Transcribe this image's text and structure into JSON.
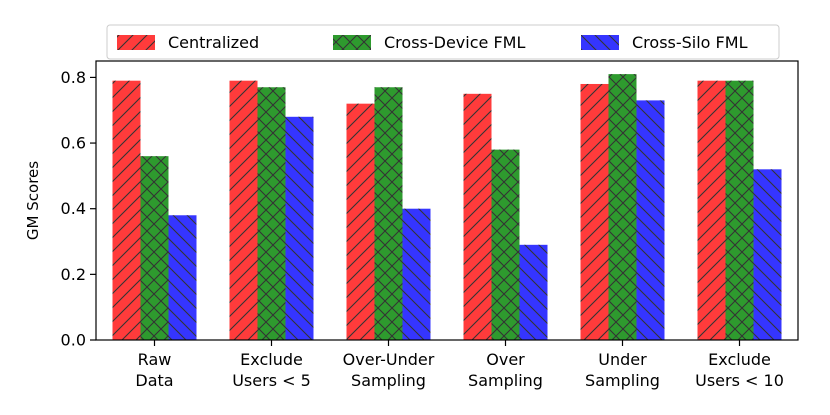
{
  "chart_data": {
    "type": "bar",
    "title": "",
    "xlabel": "",
    "ylabel": "GM Scores",
    "ylim": [
      0,
      0.85
    ],
    "yticks": [
      0.0,
      0.2,
      0.4,
      0.6,
      0.8
    ],
    "ytick_labels": [
      "0.0",
      "0.2",
      "0.4",
      "0.6",
      "0.8"
    ],
    "categories": [
      [
        "Raw",
        "Data"
      ],
      [
        "Exclude",
        "Users < 5"
      ],
      [
        "Over-Under",
        "Sampling"
      ],
      [
        "Over",
        "Sampling"
      ],
      [
        "Under",
        "Sampling"
      ],
      [
        "Exclude",
        "Users < 10"
      ]
    ],
    "series": [
      {
        "name": "Centralized",
        "color": "#ff3b3b",
        "hatch": "diagonal",
        "values": [
          0.79,
          0.79,
          0.72,
          0.75,
          0.78,
          0.79
        ]
      },
      {
        "name": "Cross-Device FML",
        "color": "#2e9a2e",
        "hatch": "crosshatch",
        "values": [
          0.56,
          0.77,
          0.77,
          0.58,
          0.81,
          0.79
        ]
      },
      {
        "name": "Cross-Silo FML",
        "color": "#3535ff",
        "hatch": "backdiagonal",
        "values": [
          0.38,
          0.68,
          0.4,
          0.29,
          0.73,
          0.52
        ]
      }
    ],
    "legend": "top-center",
    "grid": false
  }
}
